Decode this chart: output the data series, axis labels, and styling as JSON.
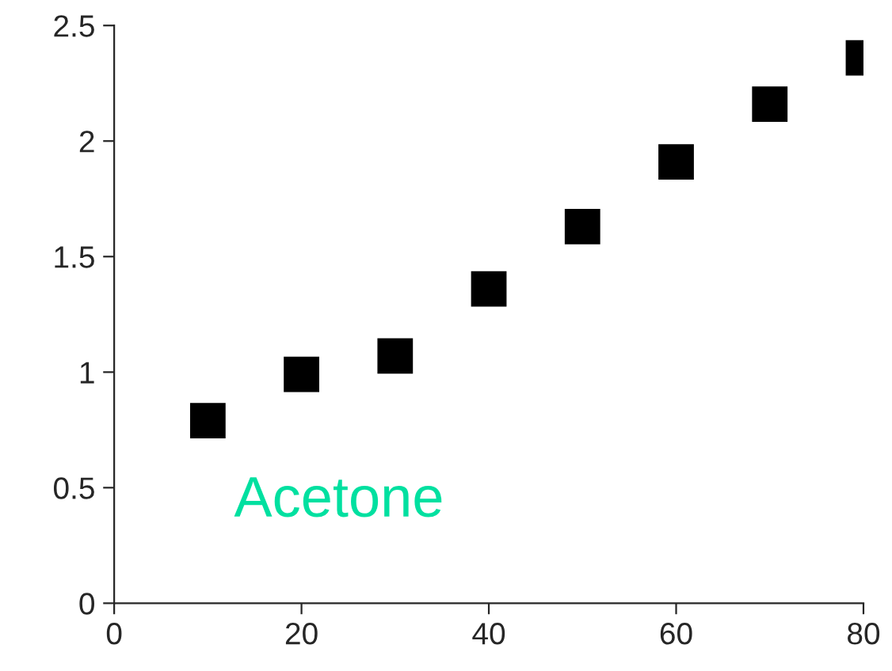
{
  "chart_data": {
    "type": "scatter",
    "x": [
      10,
      20,
      30,
      40,
      50,
      60,
      70,
      80
    ],
    "series": [
      {
        "name": "Acetone",
        "color": "#000000",
        "values": [
          0.79,
          0.99,
          1.07,
          1.36,
          1.63,
          1.91,
          2.16,
          2.36
        ]
      }
    ],
    "marker": "square",
    "xlim": [
      0,
      80
    ],
    "ylim": [
      0,
      2.5
    ],
    "xticks": [
      0,
      20,
      40,
      60,
      80
    ],
    "yticks": [
      0,
      0.5,
      1,
      1.5,
      2,
      2.5
    ],
    "grid": false,
    "legend": false
  }
}
